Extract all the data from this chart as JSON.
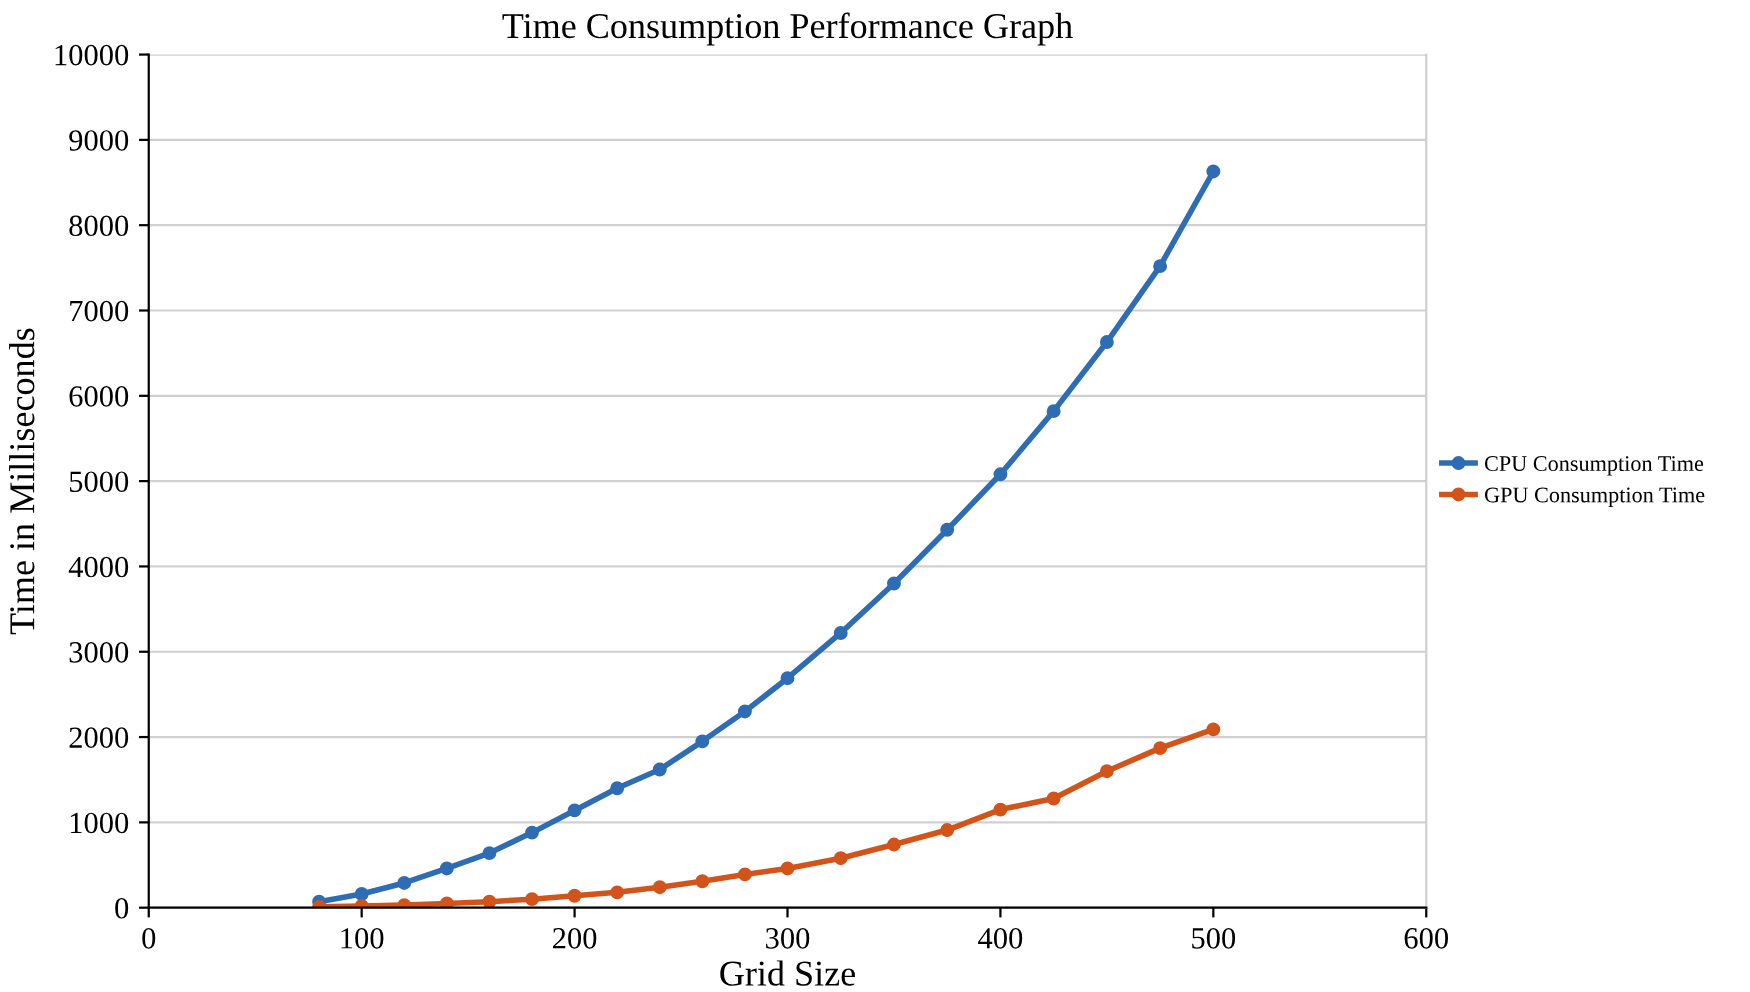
{
  "chart_data": {
    "type": "line",
    "title": "Time Consumption Performance Graph",
    "xlabel": "Grid Size",
    "ylabel": "Time in Milliseconds",
    "x": [
      80,
      100,
      120,
      140,
      160,
      180,
      200,
      220,
      240,
      260,
      280,
      300,
      325,
      350,
      375,
      400,
      425,
      450,
      475,
      500
    ],
    "series": [
      {
        "name": "CPU Consumption Time",
        "color": "#2e6db4",
        "values": [
          70,
          160,
          290,
          460,
          640,
          880,
          1140,
          1400,
          1620,
          1950,
          2300,
          2690,
          3220,
          3800,
          4430,
          5080,
          5820,
          6630,
          7520,
          8630
        ]
      },
      {
        "name": "GPU Consumption Time",
        "color": "#d2541b",
        "values": [
          10,
          20,
          30,
          50,
          70,
          100,
          140,
          180,
          240,
          310,
          390,
          460,
          580,
          740,
          910,
          1150,
          1280,
          1600,
          1870,
          2090
        ]
      }
    ],
    "xlim": [
      0,
      600
    ],
    "xticks": [
      0,
      100,
      200,
      300,
      400,
      500,
      600
    ],
    "ylim": [
      0,
      10000
    ],
    "yticks": [
      0,
      1000,
      2000,
      3000,
      4000,
      5000,
      6000,
      7000,
      8000,
      9000,
      10000
    ],
    "grid": "y",
    "legend": "right",
    "marker": "circle",
    "line_style": "solid"
  }
}
